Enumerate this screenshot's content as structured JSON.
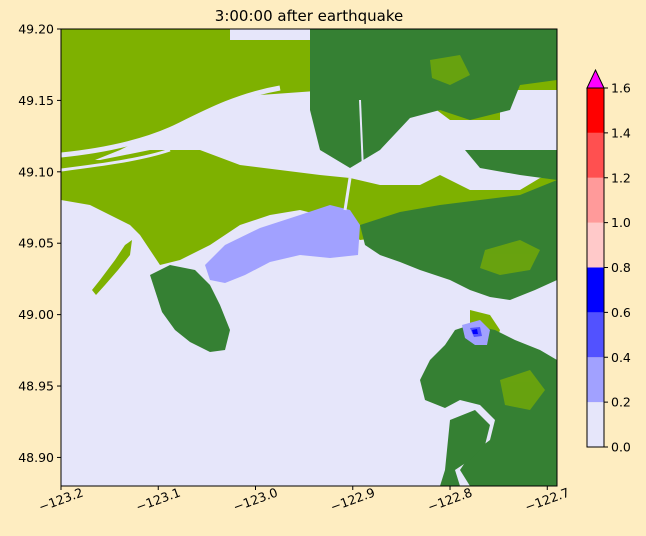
{
  "chart_data": {
    "type": "heatmap",
    "title": "3:00:00 after earthquake",
    "x_ticks": [
      "−123.2",
      "−123.1",
      "−123.0",
      "−122.9",
      "−122.8",
      "−122.7"
    ],
    "x_tick_values": [
      -123.2,
      -123.1,
      -123.0,
      -122.9,
      -122.8,
      -122.7
    ],
    "y_ticks": [
      "48.90",
      "48.95",
      "49.00",
      "49.05",
      "49.10",
      "49.15",
      "49.20"
    ],
    "y_tick_values": [
      48.9,
      48.95,
      49.0,
      49.05,
      49.1,
      49.15,
      49.2
    ],
    "xlim": [
      -123.2,
      -122.69
    ],
    "ylim": [
      48.88,
      49.2
    ],
    "colorbar": {
      "ticks": [
        "0.0",
        "0.2",
        "0.4",
        "0.6",
        "0.8",
        "1.0",
        "1.2",
        "1.4",
        "1.6"
      ],
      "range": [
        0.0,
        1.6
      ],
      "extend": "max",
      "levels": [
        {
          "from": 0.0,
          "to": 0.2,
          "color": "#e6e6fa"
        },
        {
          "from": 0.2,
          "to": 0.4,
          "color": "#a1a1ff"
        },
        {
          "from": 0.4,
          "to": 0.6,
          "color": "#5252ff"
        },
        {
          "from": 0.6,
          "to": 0.8,
          "color": "#0000ff"
        },
        {
          "from": 0.8,
          "to": 1.0,
          "color": "#ffc9c9"
        },
        {
          "from": 1.0,
          "to": 1.2,
          "color": "#ff9a9a"
        },
        {
          "from": 1.2,
          "to": 1.4,
          "color": "#ff5050"
        },
        {
          "from": 1.4,
          "to": 1.6,
          "color": "#ff0000"
        }
      ],
      "over_color": "#ff00ff"
    },
    "colors": {
      "water": "#e6e6fa",
      "lowland": "#7eb100",
      "highland": "#358033",
      "inundation_light": "#a1a1ff",
      "inundation_mid": "#5252ff",
      "inundation_deep": "#0000ff",
      "background": "#feedc1"
    }
  }
}
